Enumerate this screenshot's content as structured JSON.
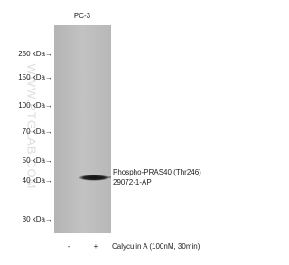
{
  "lane_header": "PC-3",
  "markers": [
    "250 kDa→",
    "150 kDa→",
    "100 kDa→",
    "70 kDa→",
    "50 kDa→",
    "40 kDa→",
    "30 kDa→"
  ],
  "band_label": {
    "name": "Phospho-PRAS40 (Thr246)",
    "catalog": "29072-1-AP"
  },
  "lanes": [
    "-",
    "+"
  ],
  "treatment": "Calyculin A (100nM, 30min)",
  "watermark": "WWW.PTGLAB.COM"
}
